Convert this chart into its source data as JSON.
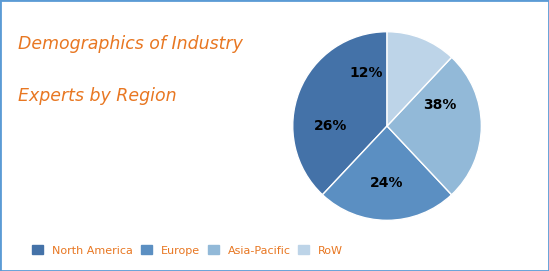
{
  "title_line1": "Demographics of Industry",
  "title_line2": "Experts by Region",
  "title_color": "#E87722",
  "title_fontsize": 12.5,
  "slices": [
    38,
    24,
    26,
    12
  ],
  "colors": [
    "#4472A8",
    "#5B8FC2",
    "#92B9D8",
    "#BDD4E8"
  ],
  "pct_labels": [
    "38%",
    "24%",
    "26%",
    "12%"
  ],
  "startangle": 90,
  "legend_labels": [
    "North America",
    "Europe",
    "Asia-Pacific",
    "RoW"
  ],
  "legend_color": "#E87722",
  "background_color": "#FFFFFF",
  "border_color": "#5B9BD5"
}
